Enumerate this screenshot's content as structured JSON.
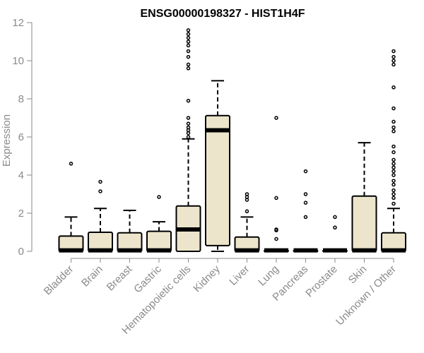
{
  "chart_data": {
    "type": "boxplot",
    "title": "ENSG00000198327 - HIST1H4F",
    "ylabel": "Expression",
    "ylim": [
      0,
      12
    ],
    "yticks": [
      0,
      2,
      4,
      6,
      8,
      10,
      12
    ],
    "grid": false,
    "colors": {
      "box_fill": "#ece5cc",
      "stroke": "#000000",
      "axis": "#8a8a8a",
      "text": "#8a8a8a"
    },
    "categories": [
      "Bladder",
      "Brain",
      "Breast",
      "Gastric",
      "Hematopoietic cells",
      "Kidney",
      "Liver",
      "Lung",
      "Pancreas",
      "Prostate",
      "Skin",
      "Unknown / Other"
    ],
    "boxes": [
      {
        "q1": 0,
        "median": 0.05,
        "q3": 0.8,
        "wlow": 0,
        "whigh": 1.8,
        "outliers": [
          4.6
        ]
      },
      {
        "q1": 0,
        "median": 0.05,
        "q3": 1.0,
        "wlow": 0,
        "whigh": 2.25,
        "outliers": [
          3.15,
          3.65
        ]
      },
      {
        "q1": 0,
        "median": 0.05,
        "q3": 0.97,
        "wlow": 0,
        "whigh": 2.15,
        "outliers": []
      },
      {
        "q1": 0,
        "median": 0.05,
        "q3": 1.05,
        "wlow": 0,
        "whigh": 1.55,
        "outliers": [
          2.85
        ]
      },
      {
        "q1": 0,
        "median": 1.15,
        "q3": 2.38,
        "wlow": 0,
        "whigh": 5.9,
        "outliers": [
          6.0,
          6.2,
          6.35,
          6.5,
          6.7,
          7.0,
          7.9,
          9.6,
          9.8,
          10.2,
          10.5,
          10.8,
          11.0,
          11.2,
          11.4,
          11.6
        ]
      },
      {
        "q1": 0.3,
        "median": 6.35,
        "q3": 7.12,
        "wlow": 0,
        "whigh": 8.95,
        "outliers": []
      },
      {
        "q1": 0,
        "median": 0.05,
        "q3": 0.75,
        "wlow": 0,
        "whigh": 1.8,
        "outliers": [
          2.1,
          2.7,
          2.85,
          3.0
        ]
      },
      {
        "q1": 0,
        "median": 0.05,
        "q3": 0.05,
        "wlow": 0,
        "whigh": 0.05,
        "outliers": [
          0.65,
          1.1,
          1.15,
          2.8,
          7.0
        ]
      },
      {
        "q1": 0,
        "median": 0.05,
        "q3": 0.05,
        "wlow": 0,
        "whigh": 0.05,
        "outliers": [
          1.8,
          2.55,
          3.0,
          4.2
        ]
      },
      {
        "q1": 0,
        "median": 0.05,
        "q3": 0.05,
        "wlow": 0,
        "whigh": 0.05,
        "outliers": [
          1.25,
          1.8
        ]
      },
      {
        "q1": 0,
        "median": 0.05,
        "q3": 2.9,
        "wlow": 0,
        "whigh": 5.7,
        "outliers": []
      },
      {
        "q1": 0,
        "median": 0.05,
        "q3": 0.97,
        "wlow": 0,
        "whigh": 2.25,
        "outliers": [
          2.5,
          2.8,
          3.0,
          3.2,
          3.5,
          3.7,
          4.0,
          4.2,
          4.4,
          4.6,
          4.8,
          5.2,
          5.5,
          6.3,
          6.5,
          6.8,
          7.5,
          8.6,
          9.8,
          10.0,
          10.2,
          10.5
        ]
      }
    ]
  }
}
